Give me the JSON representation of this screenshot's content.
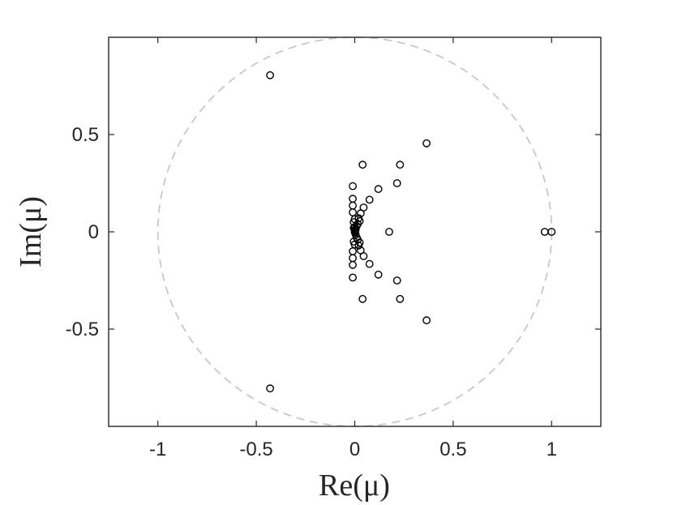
{
  "chart_data": {
    "type": "scatter",
    "title": "",
    "xlabel": "Re(μ)",
    "ylabel": "Im(μ)",
    "xlim": [
      -1.25,
      1.25
    ],
    "ylim": [
      -1.0,
      1.0
    ],
    "xticks": [
      -1,
      -0.5,
      0,
      0.5,
      1
    ],
    "xtick_labels": [
      "-1",
      "-0.5",
      "0",
      "0.5",
      "1"
    ],
    "yticks": [
      -0.5,
      0,
      0.5
    ],
    "ytick_labels": [
      "-0.5",
      "0",
      "0.5"
    ],
    "grid": false,
    "marker": "open-circle",
    "marker_color": "#000000",
    "unit_circle": {
      "radius": 1,
      "style": "dashed",
      "color": "#c8c8c8"
    },
    "series": [
      {
        "x": [
          -0.43,
          -0.43,
          0.365,
          0.365,
          0.965,
          1.0,
          0.23,
          0.23,
          0.215,
          0.215,
          0.04,
          0.04,
          0.12,
          0.12,
          0.075,
          0.075,
          0.175,
          -0.01,
          -0.01,
          -0.01,
          -0.01,
          -0.01,
          -0.01,
          -0.01,
          -0.01,
          0.045,
          0.045,
          0.03,
          0.03,
          0.02,
          0.02,
          0.025,
          0.025,
          0.015,
          0.015,
          0.01,
          0.01,
          0.0,
          0.0,
          -0.005,
          -0.005,
          -0.005,
          0.005,
          0.005,
          0.0,
          0.003,
          0.002,
          0.0,
          0.0
        ],
        "y": [
          0.805,
          -0.805,
          0.455,
          -0.455,
          0.0,
          0.0,
          0.345,
          -0.345,
          0.25,
          -0.25,
          0.345,
          -0.345,
          0.22,
          -0.22,
          0.165,
          -0.165,
          0.0,
          0.235,
          -0.235,
          0.17,
          -0.17,
          0.135,
          -0.135,
          0.1,
          -0.1,
          0.125,
          -0.125,
          0.095,
          -0.095,
          0.07,
          -0.07,
          0.055,
          -0.055,
          0.04,
          -0.04,
          0.03,
          -0.03,
          0.065,
          -0.065,
          0.05,
          -0.05,
          0.02,
          0.015,
          -0.015,
          0.01,
          0.005,
          -0.005,
          0.0,
          0.025
        ]
      }
    ]
  }
}
